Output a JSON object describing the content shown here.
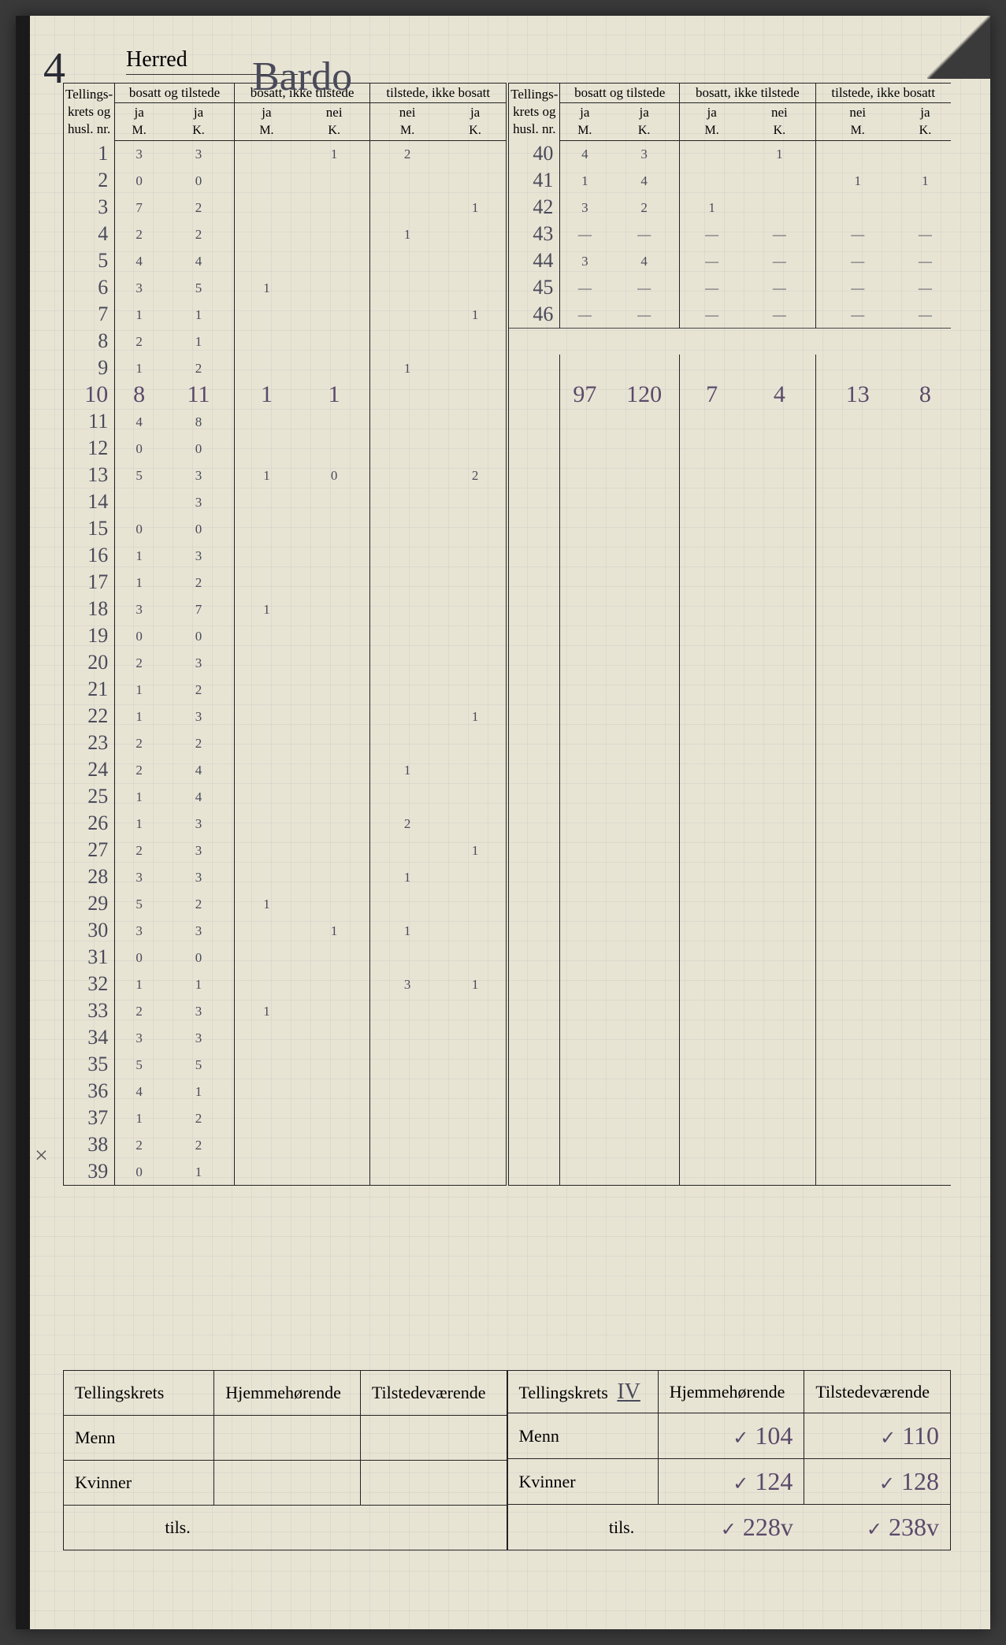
{
  "page_number_handwritten": "4",
  "header": {
    "herred_label": "Herred",
    "herred_value": "Bardo"
  },
  "column_headers": {
    "tellingskrets": "Tellings-\nkrets og\nhusl. nr.",
    "group1": {
      "title": "bosatt og tilstede",
      "sub_left": "ja",
      "sub_right": "ja"
    },
    "group2": {
      "title": "bosatt, ikke tilstede",
      "sub_left": "ja",
      "sub_right": "nei"
    },
    "group3": {
      "title": "tilstede, ikke bosatt",
      "sub_left": "nei",
      "sub_right": "ja"
    },
    "mk_m": "M.",
    "mk_k": "K."
  },
  "rows_left": [
    {
      "n": "1",
      "m1": "3",
      "k1": "3",
      "m2": "",
      "k2": "1",
      "m3": "2",
      "k3": ""
    },
    {
      "n": "2",
      "m1": "0",
      "k1": "0",
      "m2": "",
      "k2": "",
      "m3": "",
      "k3": ""
    },
    {
      "n": "3",
      "m1": "7",
      "k1": "2",
      "m2": "",
      "k2": "",
      "m3": "",
      "k3": "1"
    },
    {
      "n": "4",
      "m1": "2",
      "k1": "2",
      "m2": "",
      "k2": "",
      "m3": "1",
      "k3": ""
    },
    {
      "n": "5",
      "m1": "4",
      "k1": "4",
      "m2": "",
      "k2": "",
      "m3": "",
      "k3": ""
    },
    {
      "n": "6",
      "m1": "3",
      "k1": "5",
      "m2": "1",
      "k2": "",
      "m3": "",
      "k3": ""
    },
    {
      "n": "7",
      "m1": "1",
      "k1": "1",
      "m2": "",
      "k2": "",
      "m3": "",
      "k3": "1"
    },
    {
      "n": "8",
      "m1": "2",
      "k1": "1",
      "m2": "",
      "k2": "",
      "m3": "",
      "k3": ""
    },
    {
      "n": "9",
      "m1": "1",
      "k1": "2",
      "m2": "",
      "k2": "",
      "m3": "1",
      "k3": ""
    },
    {
      "n": "10",
      "m1": "8",
      "k1": "11",
      "m2": "1",
      "k2": "1",
      "m3": "",
      "k3": ""
    },
    {
      "n": "11",
      "m1": "4",
      "k1": "8",
      "m2": "",
      "k2": "",
      "m3": "",
      "k3": ""
    },
    {
      "n": "12",
      "m1": "0",
      "k1": "0",
      "m2": "",
      "k2": "",
      "m3": "",
      "k3": ""
    },
    {
      "n": "13",
      "m1": "5",
      "k1": "3",
      "m2": "1",
      "k2": "0",
      "m3": "",
      "k3": "2"
    },
    {
      "n": "14",
      "m1": "",
      "k1": "3",
      "m2": "",
      "k2": "",
      "m3": "",
      "k3": ""
    },
    {
      "n": "15",
      "m1": "0",
      "k1": "0",
      "m2": "",
      "k2": "",
      "m3": "",
      "k3": ""
    },
    {
      "n": "16",
      "m1": "1",
      "k1": "3",
      "m2": "",
      "k2": "",
      "m3": "",
      "k3": ""
    },
    {
      "n": "17",
      "m1": "1",
      "k1": "2",
      "m2": "",
      "k2": "",
      "m3": "",
      "k3": ""
    },
    {
      "n": "18",
      "m1": "3",
      "k1": "7",
      "m2": "1",
      "k2": "",
      "m3": "",
      "k3": ""
    },
    {
      "n": "19",
      "m1": "0",
      "k1": "0",
      "m2": "",
      "k2": "",
      "m3": "",
      "k3": ""
    },
    {
      "n": "20",
      "m1": "2",
      "k1": "3",
      "m2": "",
      "k2": "",
      "m3": "",
      "k3": ""
    },
    {
      "n": "21",
      "m1": "1",
      "k1": "2",
      "m2": "",
      "k2": "",
      "m3": "",
      "k3": ""
    },
    {
      "n": "22",
      "m1": "1",
      "k1": "3",
      "m2": "",
      "k2": "",
      "m3": "",
      "k3": "1"
    },
    {
      "n": "23",
      "m1": "2",
      "k1": "2",
      "m2": "",
      "k2": "",
      "m3": "",
      "k3": ""
    },
    {
      "n": "24",
      "m1": "2",
      "k1": "4",
      "m2": "",
      "k2": "",
      "m3": "1",
      "k3": ""
    },
    {
      "n": "25",
      "m1": "1",
      "k1": "4",
      "m2": "",
      "k2": "",
      "m3": "",
      "k3": ""
    },
    {
      "n": "26",
      "m1": "1",
      "k1": "3",
      "m2": "",
      "k2": "",
      "m3": "2",
      "k3": ""
    },
    {
      "n": "27",
      "m1": "2",
      "k1": "3",
      "m2": "",
      "k2": "",
      "m3": "",
      "k3": "1"
    },
    {
      "n": "28",
      "m1": "3",
      "k1": "3",
      "m2": "",
      "k2": "",
      "m3": "1",
      "k3": ""
    },
    {
      "n": "29",
      "m1": "5",
      "k1": "2",
      "m2": "1",
      "k2": "",
      "m3": "",
      "k3": ""
    },
    {
      "n": "30",
      "m1": "3",
      "k1": "3",
      "m2": "",
      "k2": "1",
      "m3": "1",
      "k3": ""
    },
    {
      "n": "31",
      "m1": "0",
      "k1": "0",
      "m2": "",
      "k2": "",
      "m3": "",
      "k3": ""
    },
    {
      "n": "32",
      "m1": "1",
      "k1": "1",
      "m2": "",
      "k2": "",
      "m3": "3",
      "k3": "1"
    },
    {
      "n": "33",
      "m1": "2",
      "k1": "3",
      "m2": "1",
      "k2": "",
      "m3": "",
      "k3": ""
    },
    {
      "n": "34",
      "m1": "3",
      "k1": "3",
      "m2": "",
      "k2": "",
      "m3": "",
      "k3": ""
    },
    {
      "n": "35",
      "m1": "5",
      "k1": "5",
      "m2": "",
      "k2": "",
      "m3": "",
      "k3": ""
    },
    {
      "n": "36",
      "m1": "4",
      "k1": "1",
      "m2": "",
      "k2": "",
      "m3": "",
      "k3": ""
    },
    {
      "n": "37",
      "m1": "1",
      "k1": "2",
      "m2": "",
      "k2": "",
      "m3": "",
      "k3": ""
    },
    {
      "n": "38",
      "m1": "2",
      "k1": "2",
      "m2": "",
      "k2": "",
      "m3": "",
      "k3": ""
    },
    {
      "n": "39",
      "m1": "0",
      "k1": "1",
      "m2": "",
      "k2": "",
      "m3": "",
      "k3": ""
    }
  ],
  "rows_right": [
    {
      "n": "40",
      "m1": "4",
      "k1": "3",
      "m2": "",
      "k2": "1",
      "m3": "",
      "k3": ""
    },
    {
      "n": "41",
      "m1": "1",
      "k1": "4",
      "m2": "",
      "k2": "",
      "m3": "1",
      "k3": "1"
    },
    {
      "n": "42",
      "m1": "3",
      "k1": "2",
      "m2": "1",
      "k2": "",
      "m3": "",
      "k3": ""
    },
    {
      "n": "43",
      "m1": "—",
      "k1": "—",
      "m2": "—",
      "k2": "—",
      "m3": "—",
      "k3": "—"
    },
    {
      "n": "44",
      "m1": "3",
      "k1": "4",
      "m2": "—",
      "k2": "—",
      "m3": "—",
      "k3": "—"
    },
    {
      "n": "45",
      "m1": "—",
      "k1": "—",
      "m2": "—",
      "k2": "—",
      "m3": "—",
      "k3": "—"
    },
    {
      "n": "46",
      "m1": "—",
      "k1": "—",
      "m2": "—",
      "k2": "—",
      "m3": "—",
      "k3": "—"
    }
  ],
  "right_totals": {
    "m1": "97",
    "k1": "120",
    "m2": "7",
    "k2": "4",
    "m3": "13",
    "k3": "8"
  },
  "summary": {
    "headers": {
      "tellingskrets": "Tellingskrets",
      "hjemme": "Hjemmehørende",
      "tilstede": "Tilstedeværende"
    },
    "tellingskrets_value": "IV",
    "rows": {
      "menn": {
        "label": "Menn",
        "hjemme": "104",
        "tilstede": "110"
      },
      "kvinner": {
        "label": "Kvinner",
        "hjemme": "124",
        "tilstede": "128"
      },
      "tils": {
        "label": "tils.",
        "hjemme": "228v",
        "tilstede": "238v"
      }
    }
  },
  "x_mark": "×",
  "colors": {
    "paper": "#e8e4d4",
    "grid": "rgba(150,160,170,0.15)",
    "ink_print": "#222222",
    "ink_pencil": "#4a4a5a",
    "ink_purple": "#5a4a6a"
  }
}
